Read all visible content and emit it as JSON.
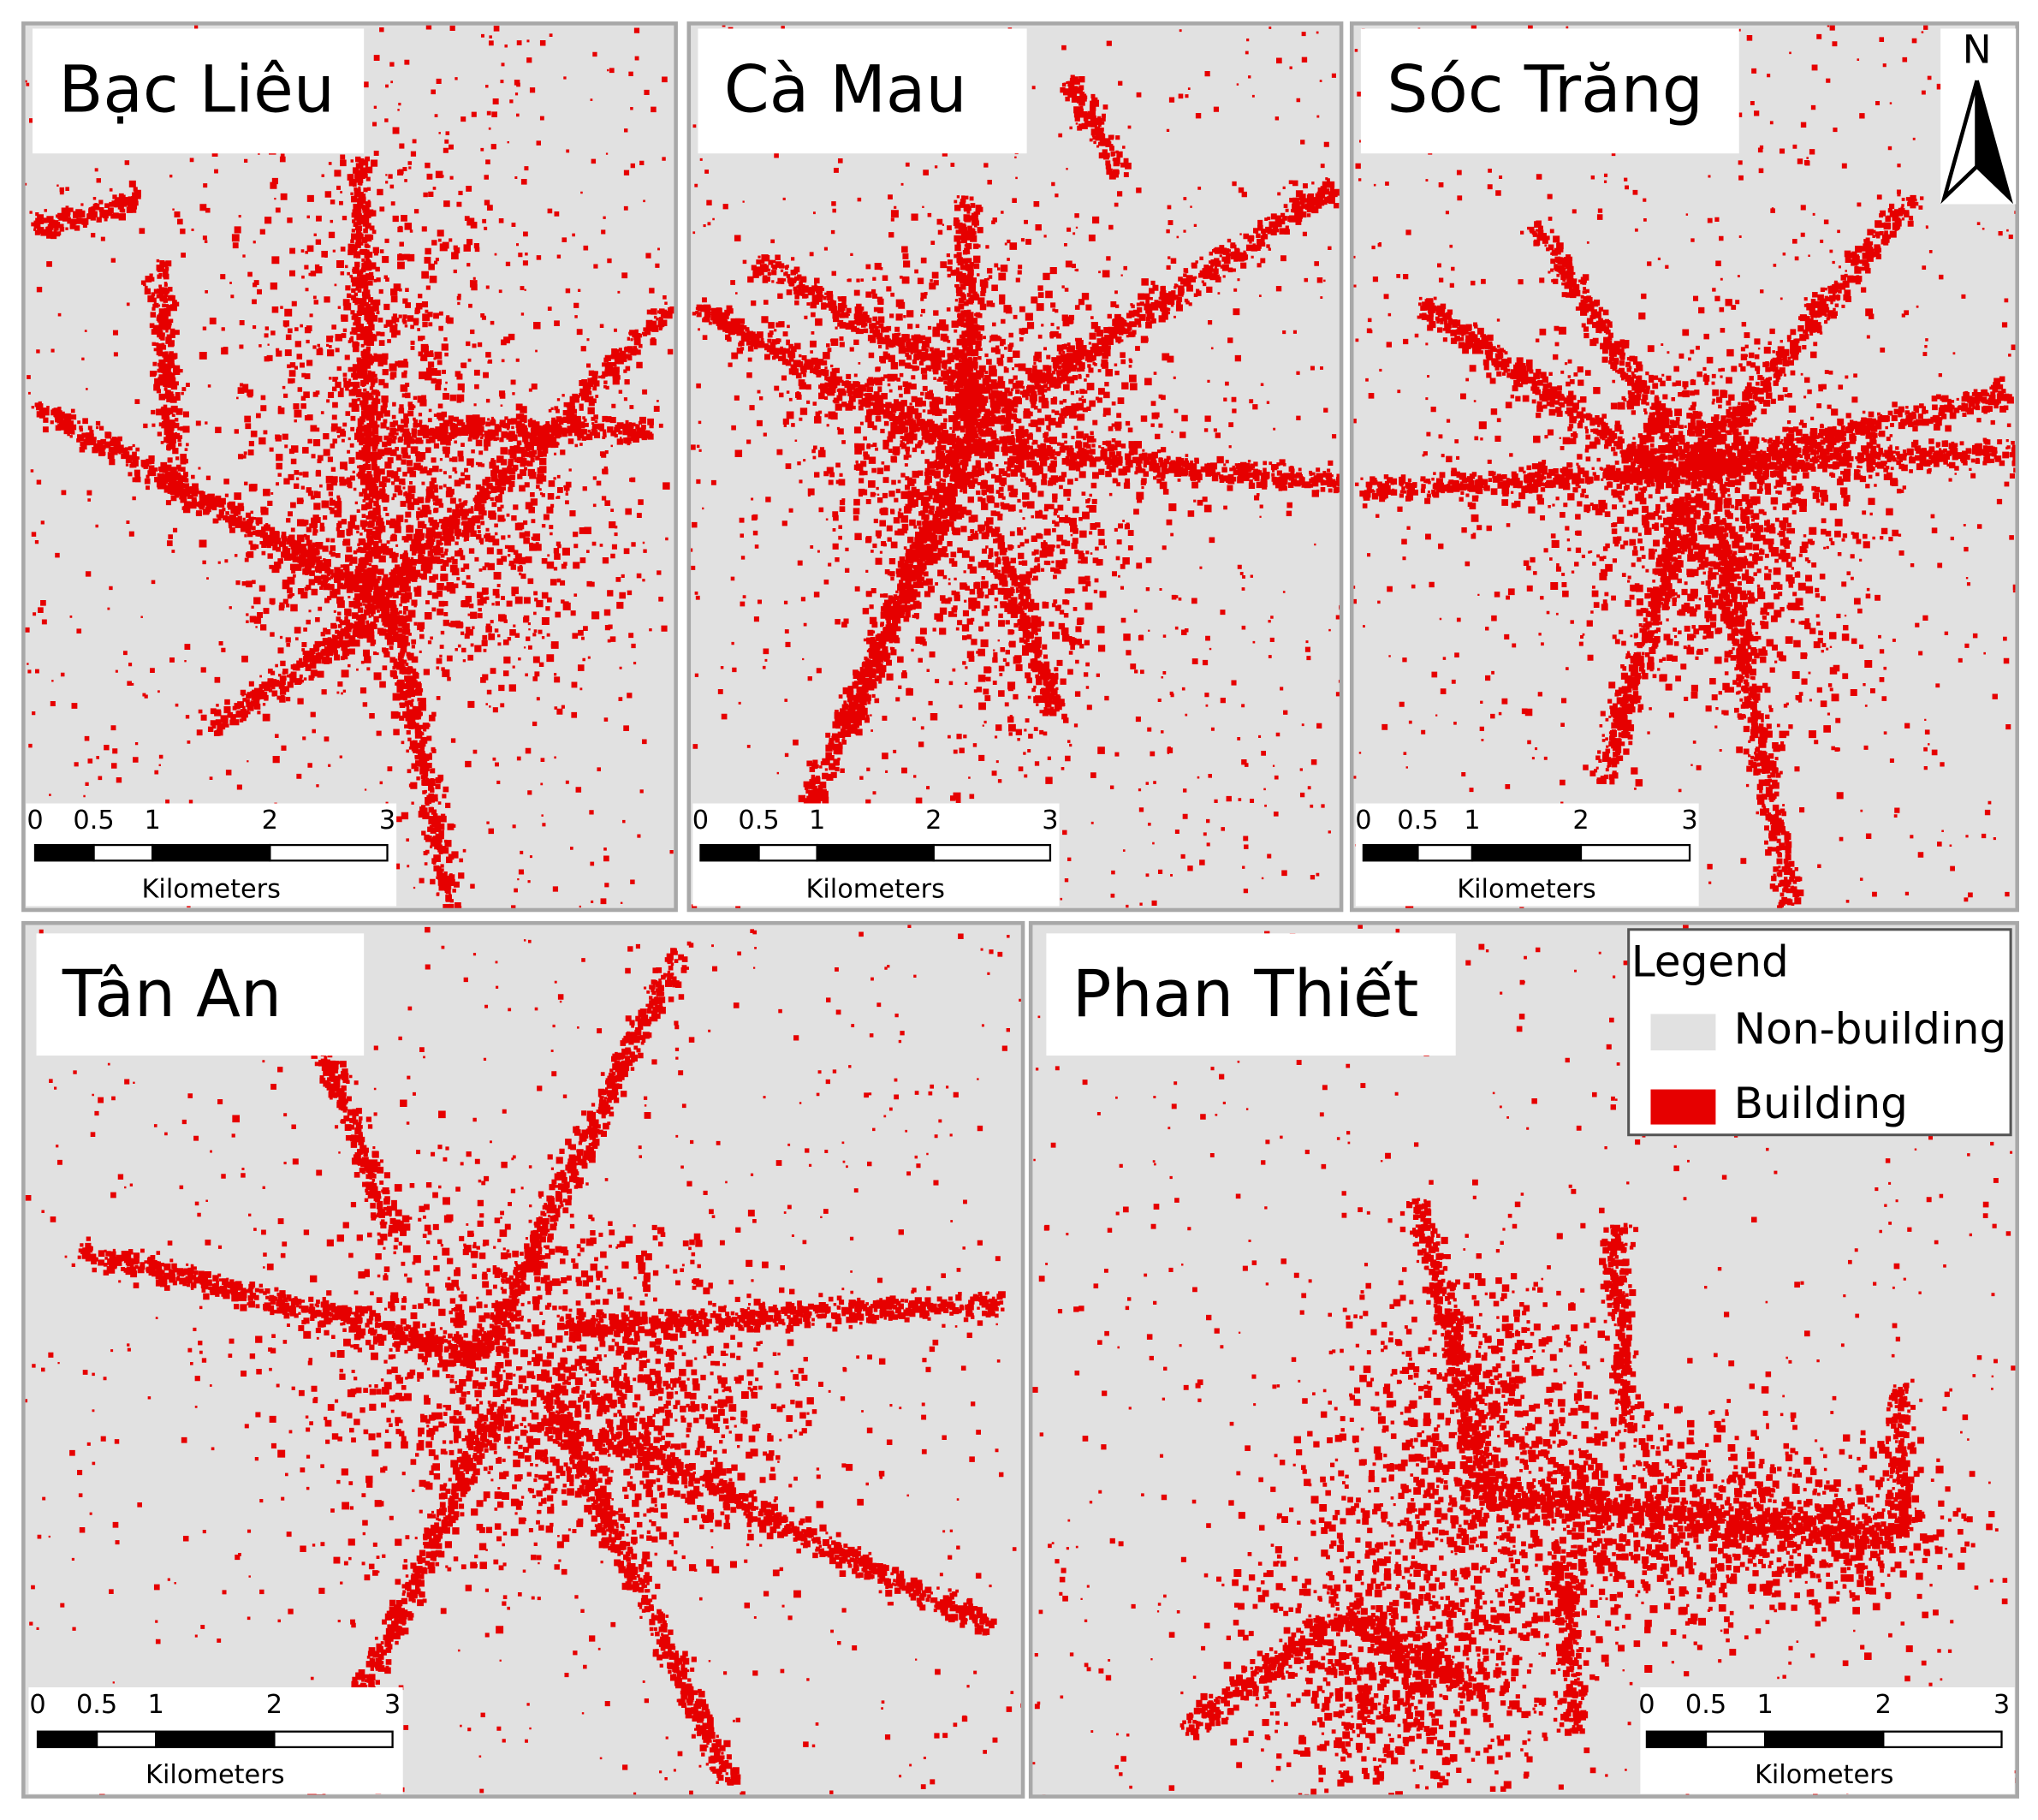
{
  "panels": [
    {
      "title": "Bạc Liêu",
      "scale_bar": {
        "ticks": [
          0,
          0.5,
          1,
          2,
          3
        ],
        "unit": "Kilometers"
      }
    },
    {
      "title": "Cà Mau",
      "scale_bar": {
        "ticks": [
          0,
          0.5,
          1,
          2,
          3
        ],
        "unit": "Kilometers"
      }
    },
    {
      "title": "Sóc Trăng",
      "scale_bar": {
        "ticks": [
          0,
          0.5,
          1,
          2,
          3
        ],
        "unit": "Kilometers"
      }
    },
    {
      "title": "Tân An",
      "scale_bar": {
        "ticks": [
          0,
          0.5,
          1,
          2,
          3
        ],
        "unit": "Kilometers"
      }
    },
    {
      "title": "Phan Thiết",
      "scale_bar": {
        "ticks": [
          0,
          0.5,
          1,
          2,
          3
        ],
        "unit": "Kilometers"
      }
    }
  ],
  "north_arrow": {
    "label": "N"
  },
  "legend": {
    "title": "Legend",
    "items": [
      {
        "label": "Non-building",
        "color": "#e1e1e1"
      },
      {
        "label": "Building",
        "color": "#e60000"
      }
    ]
  }
}
